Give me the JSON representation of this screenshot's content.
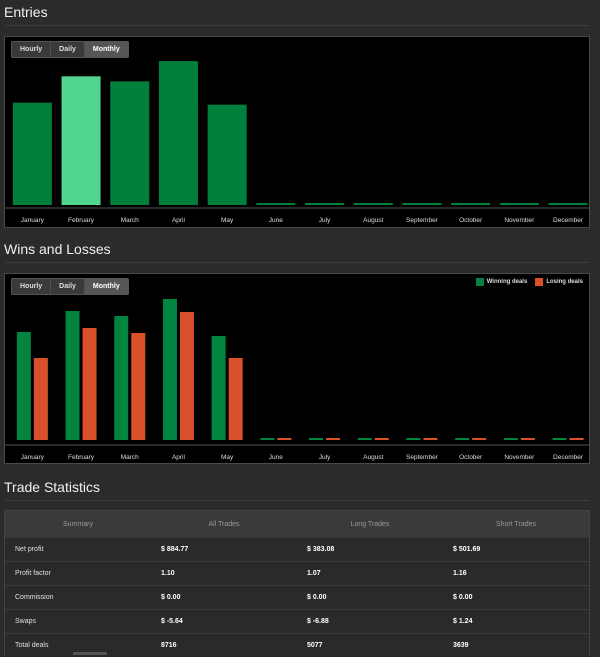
{
  "sections": {
    "entries_title": "Entries",
    "wins_losses_title": "Wins and Losses",
    "stats_title": "Trade Statistics"
  },
  "entries_tabs": [
    {
      "label": "Hourly",
      "active": false
    },
    {
      "label": "Daily",
      "active": false
    },
    {
      "label": "Monthly",
      "active": true
    }
  ],
  "wl_tabs": [
    {
      "label": "Hourly",
      "active": false
    },
    {
      "label": "Daily",
      "active": false
    },
    {
      "label": "Monthly",
      "active": true
    }
  ],
  "legend": {
    "winning": "Winning deals",
    "losing": "Losing deals"
  },
  "colors": {
    "bar": "#00803a",
    "bar_highlight": "#52d68f",
    "win": "#00843f",
    "loss": "#d8512a",
    "zero": "#00803a"
  },
  "chart_data": [
    {
      "type": "bar",
      "title": "Entries",
      "categories": [
        "January",
        "February",
        "March",
        "April",
        "May",
        "June",
        "July",
        "August",
        "September",
        "October",
        "November",
        "December"
      ],
      "values": [
        101,
        127,
        122,
        142,
        99,
        0,
        0,
        0,
        0,
        0,
        0,
        0
      ],
      "highlight_index": 1,
      "ylim": [
        0,
        150
      ]
    },
    {
      "type": "bar",
      "title": "Wins and Losses",
      "categories": [
        "January",
        "February",
        "March",
        "April",
        "May",
        "June",
        "July",
        "August",
        "September",
        "October",
        "November",
        "December"
      ],
      "series": [
        {
          "name": "Winning deals",
          "values": [
            108,
            129,
            124,
            141,
            104,
            0,
            0,
            0,
            0,
            0,
            0,
            0
          ]
        },
        {
          "name": "Losing deals",
          "values": [
            82,
            112,
            107,
            128,
            82,
            0,
            0,
            0,
            0,
            0,
            0,
            0
          ]
        }
      ],
      "legend": "top-right",
      "ylim": [
        0,
        150
      ]
    }
  ],
  "stats": {
    "headers": [
      "Summary",
      "All Trades",
      "Long Trades",
      "Short Trades"
    ],
    "rows": [
      {
        "label": "Net profit",
        "all": "$ 884.77",
        "long": "$ 383.08",
        "short": "$ 501.69"
      },
      {
        "label": "Profit factor",
        "all": "1.10",
        "long": "1.07",
        "short": "1.16"
      },
      {
        "label": "Commission",
        "all": "$ 0.00",
        "long": "$ 0.00",
        "short": "$ 0.00"
      },
      {
        "label": "Swaps",
        "all": "$ -5.64",
        "long": "$ -6.88",
        "short": "$ 1.24"
      },
      {
        "label": "Total deals",
        "all": "8716",
        "long": "5077",
        "short": "3639"
      }
    ]
  }
}
